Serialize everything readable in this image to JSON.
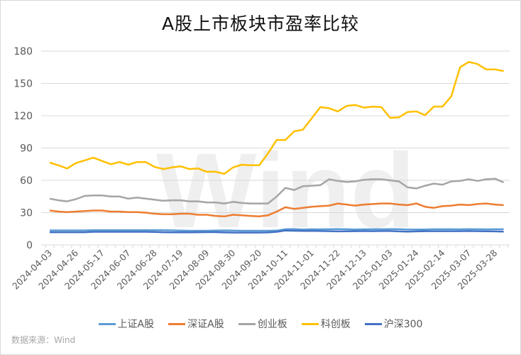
{
  "title": "A股上市板块市盈率比较",
  "source": "数据来源：Wind",
  "watermark": "Wind",
  "colors": {
    "上证A股": "#5b9bd5",
    "深证A股": "#ed7d31",
    "创业板": "#a5a5a5",
    "科创板": "#ffc000",
    "沪深300": "#4472c4",
    "grid": "#d9d9d9",
    "axis_text": "#595959"
  },
  "legend": [
    {
      "name": "上证A股",
      "color": "#5b9bd5"
    },
    {
      "name": "深证A股",
      "color": "#ed7d31"
    },
    {
      "name": "创业板",
      "color": "#a5a5a5"
    },
    {
      "name": "科创板",
      "color": "#ffc000"
    },
    {
      "name": "沪深300",
      "color": "#4472c4"
    }
  ],
  "chart_data": {
    "type": "line",
    "title": "A股上市板块市盈率比较",
    "xlabel": "",
    "ylabel": "",
    "ylim": [
      0,
      180
    ],
    "yticks": [
      0,
      30,
      60,
      90,
      120,
      150,
      180
    ],
    "grid": true,
    "legend_position": "bottom",
    "x_tick_labels": [
      "2024-04-03",
      "2024-04-26",
      "2024-05-17",
      "2024-06-07",
      "2024-06-28",
      "2024-07-19",
      "2024-08-09",
      "2024-08-30",
      "2024-09-20",
      "2024-10-11",
      "2024-11-01",
      "2024-11-22",
      "2024-12-13",
      "2025-01-03",
      "2025-01-24",
      "2025-02-14",
      "2025-03-07",
      "2025-03-28"
    ],
    "x_tick_every": 3,
    "n_points": 53,
    "series": [
      {
        "name": "上证A股",
        "values": [
          13.5,
          13.5,
          13.5,
          13.5,
          13.5,
          13.8,
          13.8,
          13.8,
          13.8,
          13.8,
          13.8,
          13.8,
          13.8,
          13.8,
          13.6,
          13.4,
          13.2,
          13.2,
          13.2,
          13.4,
          13.5,
          13.4,
          13.2,
          13.2,
          13.2,
          13.2,
          13.3,
          14.6,
          14.8,
          14.4,
          14.6,
          14.5,
          14.6,
          14.8,
          14.6,
          14.4,
          14.5,
          14.6,
          14.6,
          14.7,
          14.7,
          14.4,
          14.4,
          14.4,
          14.6,
          14.6,
          14.6,
          14.5,
          14.7,
          14.6,
          14.5,
          14.6,
          14.6
        ]
      },
      {
        "name": "深证A股",
        "values": [
          32,
          31,
          30.5,
          31,
          31.5,
          32,
          32,
          31,
          31,
          30.5,
          30.5,
          30,
          29,
          28.5,
          28.5,
          29,
          29,
          28,
          28,
          27,
          26.5,
          28,
          27.5,
          27,
          26.5,
          27.5,
          31,
          35,
          33.5,
          34.5,
          35.5,
          36,
          36.5,
          38.5,
          37.5,
          36.5,
          37.5,
          38,
          38.5,
          38.5,
          37.5,
          37,
          38.5,
          35.5,
          34.5,
          36,
          36.5,
          37.5,
          37,
          38,
          38.5,
          37.5,
          37
        ]
      },
      {
        "name": "创业板",
        "values": [
          43,
          41.5,
          40.5,
          42.5,
          45.5,
          46,
          46,
          45,
          45,
          43,
          44,
          43,
          42,
          41,
          41.5,
          41.5,
          40.5,
          40.5,
          39.5,
          39.5,
          38.5,
          40,
          39,
          38.5,
          38.5,
          38.5,
          45,
          53,
          51,
          54.5,
          55,
          55.5,
          61,
          59.5,
          58.5,
          59,
          60.5,
          61,
          61,
          60,
          59,
          53.5,
          52.5,
          55,
          57,
          56,
          59,
          59.5,
          61,
          59.5,
          61,
          61.5,
          58
        ]
      },
      {
        "name": "科创板",
        "values": [
          76.5,
          74,
          71,
          76,
          78.5,
          81,
          78,
          75,
          77,
          74.5,
          77,
          77,
          72.5,
          70.5,
          72,
          73,
          70.5,
          71,
          68,
          68,
          66,
          72,
          74.5,
          74,
          74,
          85,
          97.5,
          97.5,
          105.5,
          107,
          117.5,
          128,
          127,
          124,
          129,
          130,
          127.5,
          128.5,
          128,
          118,
          118.5,
          123.5,
          124,
          120.5,
          128.5,
          128.5,
          138,
          165,
          170,
          168,
          163,
          163,
          161.5
        ]
      },
      {
        "name": "沪深300",
        "values": [
          11.8,
          11.8,
          11.8,
          11.8,
          11.8,
          12.2,
          12.2,
          12.2,
          12.2,
          12.2,
          12.2,
          12.2,
          12.0,
          11.8,
          11.7,
          11.7,
          11.7,
          11.8,
          11.9,
          11.9,
          11.6,
          11.5,
          11.5,
          11.5,
          11.5,
          11.6,
          12.2,
          13.4,
          13.2,
          13.0,
          13.1,
          12.9,
          12.8,
          12.6,
          12.7,
          12.8,
          12.9,
          12.8,
          12.9,
          12.9,
          12.6,
          12.4,
          12.6,
          12.8,
          12.8,
          12.8,
          12.8,
          12.8,
          12.9,
          12.8,
          12.7,
          12.6,
          12.3
        ]
      }
    ]
  }
}
